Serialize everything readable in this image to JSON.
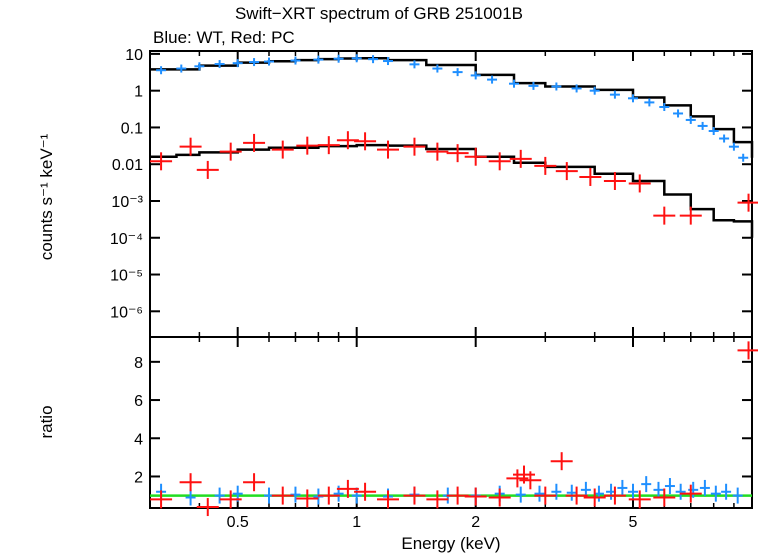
{
  "title": "Swift−XRT spectrum of GRB 251001B",
  "subtitle": "Blue: WT, Red: PC",
  "colors": {
    "wt": "#1f8fff",
    "pc": "#ff1111",
    "model": "#000000",
    "unity": "#22dd22"
  },
  "chart_data": [
    {
      "type": "scatter",
      "panel": "spectrum",
      "xlabel": "Energy (keV)",
      "ylabel": "counts s⁻¹ keV⁻¹",
      "x_scale": "log",
      "y_scale": "log",
      "xlim": [
        0.3,
        10
      ],
      "ylim": [
        2e-07,
        12
      ],
      "y_ticks": [
        1e-06,
        1e-05,
        0.0001,
        0.001,
        0.01,
        0.1,
        1,
        10
      ],
      "y_tick_labels": [
        "10⁻⁶",
        "10⁻⁵",
        "10⁻⁴",
        "10⁻³",
        "0.01",
        "0.1",
        "1",
        "10"
      ],
      "series": [
        {
          "name": "WT",
          "x": [
            0.32,
            0.36,
            0.4,
            0.45,
            0.5,
            0.55,
            0.6,
            0.7,
            0.8,
            0.9,
            1.0,
            1.1,
            1.2,
            1.4,
            1.6,
            1.8,
            2.0,
            2.2,
            2.5,
            2.8,
            3.2,
            3.6,
            4.0,
            4.5,
            5.0,
            5.5,
            6.0,
            6.5,
            7.0,
            7.5,
            8.0,
            8.5,
            9.0,
            9.5
          ],
          "y": [
            3.6,
            4.0,
            4.6,
            5.3,
            5.6,
            6.0,
            6.2,
            6.6,
            7.0,
            7.4,
            7.6,
            7.2,
            6.4,
            5.2,
            4.0,
            3.2,
            2.6,
            2.0,
            1.55,
            1.35,
            1.3,
            1.15,
            1.0,
            0.78,
            0.62,
            0.48,
            0.36,
            0.24,
            0.16,
            0.11,
            0.08,
            0.05,
            0.03,
            0.015
          ]
        },
        {
          "name": "PC",
          "x": [
            0.32,
            0.38,
            0.42,
            0.48,
            0.55,
            0.65,
            0.75,
            0.85,
            0.95,
            1.05,
            1.2,
            1.4,
            1.6,
            1.8,
            2.0,
            2.3,
            2.6,
            3.0,
            3.4,
            3.9,
            4.5,
            5.2,
            6.0,
            7.0,
            9.8
          ],
          "y": [
            0.012,
            0.03,
            0.007,
            0.022,
            0.038,
            0.025,
            0.032,
            0.033,
            0.045,
            0.042,
            0.025,
            0.03,
            0.022,
            0.02,
            0.016,
            0.012,
            0.014,
            0.009,
            0.0065,
            0.0045,
            0.0035,
            0.003,
            0.0004,
            0.0004,
            0.0009
          ]
        },
        {
          "name": "model WT",
          "x": [
            0.3,
            0.4,
            0.5,
            0.6,
            0.7,
            0.8,
            0.9,
            1.0,
            1.2,
            1.5,
            2.0,
            2.5,
            3.0,
            4.0,
            5.0,
            6.0,
            7.0,
            8.0,
            9.0,
            10.0
          ],
          "y": [
            3.8,
            4.8,
            5.8,
            6.3,
            6.8,
            7.2,
            7.5,
            7.6,
            6.8,
            5.0,
            2.7,
            1.6,
            1.3,
            1.05,
            0.65,
            0.4,
            0.2,
            0.09,
            0.04,
            0.015
          ]
        },
        {
          "name": "model PC",
          "x": [
            0.3,
            0.35,
            0.4,
            0.5,
            0.6,
            0.8,
            1.0,
            1.2,
            1.5,
            2.0,
            2.5,
            3.0,
            4.0,
            5.0,
            6.0,
            7.0,
            8.0,
            9.0,
            9.6,
            10.0
          ],
          "y": [
            0.016,
            0.018,
            0.021,
            0.025,
            0.028,
            0.031,
            0.033,
            0.032,
            0.026,
            0.016,
            0.011,
            0.0085,
            0.0055,
            0.0035,
            0.0015,
            0.0006,
            0.0003,
            0.00028,
            0.00028,
            0.0001
          ]
        }
      ]
    },
    {
      "type": "scatter",
      "panel": "ratio",
      "xlabel": "Energy (keV)",
      "ylabel": "ratio",
      "x_scale": "log",
      "xlim": [
        0.3,
        10
      ],
      "ylim": [
        0.35,
        9.3
      ],
      "x_ticks": [
        0.5,
        1,
        2,
        5
      ],
      "x_tick_labels": [
        "0.5",
        "1",
        "2",
        "5"
      ],
      "y_ticks": [
        2,
        4,
        6,
        8
      ],
      "y_tick_labels": [
        "2",
        "4",
        "6",
        "8"
      ],
      "reference_line": 1,
      "series": [
        {
          "name": "WT",
          "x": [
            0.32,
            0.38,
            0.45,
            0.5,
            0.6,
            0.7,
            0.8,
            0.9,
            1.0,
            1.2,
            1.4,
            1.7,
            2.0,
            2.3,
            2.6,
            2.9,
            3.2,
            3.5,
            3.8,
            4.1,
            4.4,
            4.7,
            5.0,
            5.4,
            5.8,
            6.2,
            6.6,
            7.1,
            7.6,
            8.1,
            8.6,
            9.2
          ],
          "y": [
            1.2,
            0.9,
            1.0,
            1.1,
            1.0,
            1.05,
            0.95,
            1.1,
            1.0,
            0.95,
            1.05,
            1.0,
            1.0,
            1.1,
            1.05,
            1.1,
            1.2,
            1.15,
            1.3,
            1.1,
            1.2,
            1.4,
            1.2,
            1.6,
            1.3,
            1.5,
            1.2,
            1.3,
            1.4,
            1.1,
            1.2,
            1.0
          ]
        },
        {
          "name": "PC",
          "x": [
            0.32,
            0.38,
            0.42,
            0.48,
            0.55,
            0.65,
            0.75,
            0.85,
            0.95,
            1.05,
            1.2,
            1.4,
            1.6,
            1.8,
            2.0,
            2.3,
            2.55,
            2.65,
            2.75,
            3.0,
            3.3,
            3.6,
            4.0,
            4.5,
            5.2,
            6.0,
            7.0,
            9.8
          ],
          "y": [
            0.8,
            1.7,
            0.4,
            0.8,
            1.7,
            1.0,
            0.85,
            1.0,
            1.35,
            1.2,
            0.8,
            1.0,
            0.8,
            1.0,
            0.95,
            0.9,
            1.9,
            2.1,
            1.8,
            1.0,
            2.8,
            1.0,
            0.9,
            1.0,
            0.8,
            0.9,
            1.1,
            8.6
          ]
        }
      ]
    }
  ]
}
